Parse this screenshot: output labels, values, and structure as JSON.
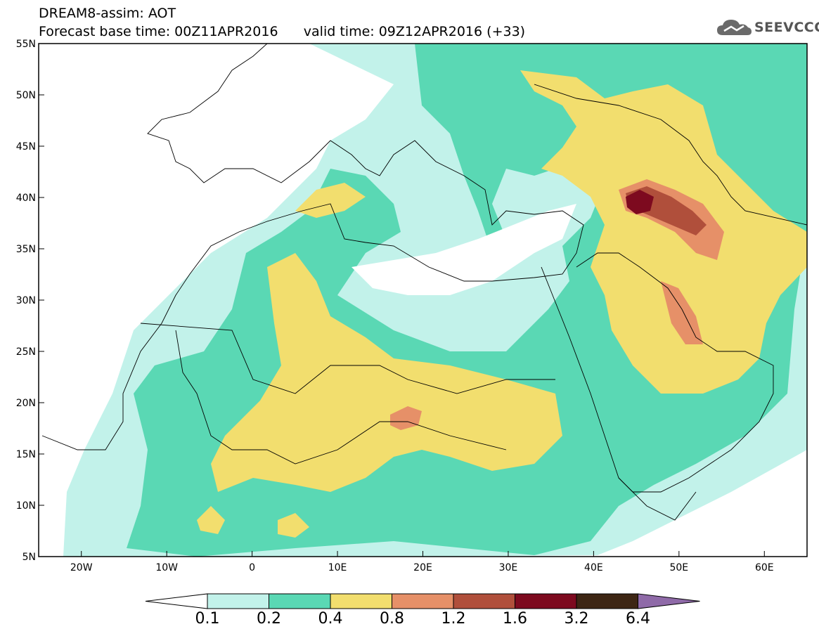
{
  "header": {
    "title_line1": "DREAM8-assim: AOT",
    "title_line2_base_label": "Forecast base time:",
    "base_time": "00Z11APR2016",
    "title_line2_valid_label": "valid time:",
    "valid_time": "09Z12APR2016",
    "lead": "(+33)"
  },
  "logo": {
    "text": "SEEVCCC",
    "icon": "cloud-icon"
  },
  "map": {
    "lon_range": [
      -25,
      65
    ],
    "lat_range": [
      5,
      55
    ],
    "x_ticks": [
      {
        "lon": -20,
        "label": "20W"
      },
      {
        "lon": -10,
        "label": "10W"
      },
      {
        "lon": 0,
        "label": "0"
      },
      {
        "lon": 10,
        "label": "10E"
      },
      {
        "lon": 20,
        "label": "20E"
      },
      {
        "lon": 30,
        "label": "30E"
      },
      {
        "lon": 40,
        "label": "40E"
      },
      {
        "lon": 50,
        "label": "50E"
      },
      {
        "lon": 60,
        "label": "60E"
      }
    ],
    "y_ticks": [
      {
        "lat": 55,
        "label": "55N"
      },
      {
        "lat": 50,
        "label": "50N"
      },
      {
        "lat": 45,
        "label": "45N"
      },
      {
        "lat": 40,
        "label": "40N"
      },
      {
        "lat": 35,
        "label": "35N"
      },
      {
        "lat": 30,
        "label": "30N"
      },
      {
        "lat": 25,
        "label": "25N"
      },
      {
        "lat": 20,
        "label": "20N"
      },
      {
        "lat": 15,
        "label": "15N"
      },
      {
        "lat": 10,
        "label": "10N"
      },
      {
        "lat": 5,
        "label": "5N"
      }
    ]
  },
  "colorbar": {
    "levels": [
      "0.1",
      "0.2",
      "0.4",
      "0.8",
      "1.2",
      "1.6",
      "3.2",
      "6.4"
    ],
    "colors": [
      "#c2f2ea",
      "#5ad8b4",
      "#f2de6e",
      "#e69068",
      "#b04f3b",
      "#7d0a1f",
      "#3d2614"
    ],
    "under_color": "#ffffff",
    "over_color": "#8f6aa8"
  }
}
